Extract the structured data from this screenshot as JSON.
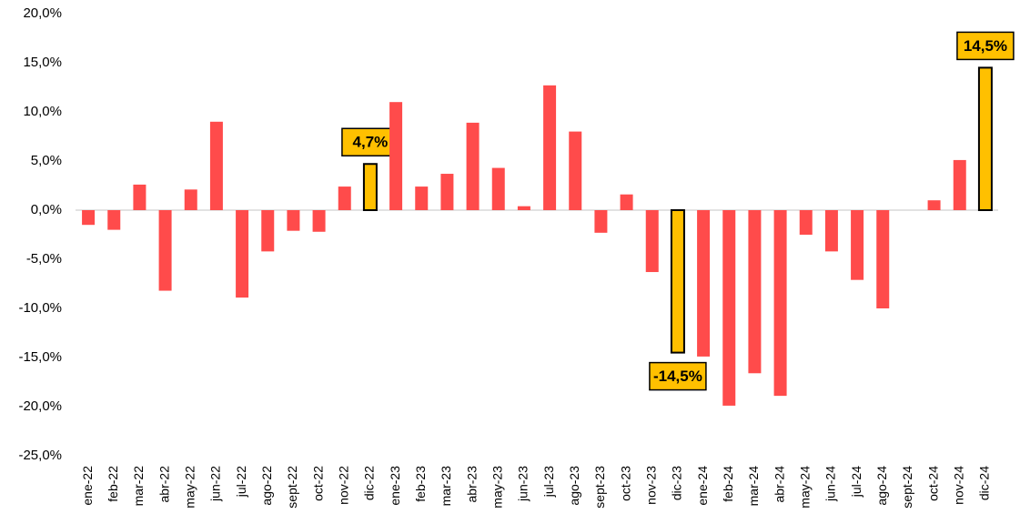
{
  "chart_data": {
    "type": "bar",
    "categories": [
      "ene-22",
      "feb-22",
      "mar-22",
      "abr-22",
      "may-22",
      "jun-22",
      "jul-22",
      "ago-22",
      "sept-22",
      "oct-22",
      "nov-22",
      "dic-22",
      "ene-23",
      "feb-23",
      "mar-23",
      "abr-23",
      "may-23",
      "jun-23",
      "jul-23",
      "ago-23",
      "sept-23",
      "oct-23",
      "nov-23",
      "dic-23",
      "ene-24",
      "feb-24",
      "mar-24",
      "abr-24",
      "may-24",
      "jun-24",
      "jul-24",
      "ago-24",
      "sept-24",
      "oct-24",
      "nov-24",
      "dic-24"
    ],
    "values": [
      -1.5,
      -2.0,
      2.6,
      -8.2,
      2.1,
      9.0,
      -8.9,
      -4.2,
      -2.1,
      -2.2,
      2.4,
      4.7,
      11.0,
      2.4,
      3.7,
      8.9,
      4.3,
      0.4,
      12.7,
      8.0,
      -2.3,
      1.6,
      -6.3,
      -14.5,
      -14.9,
      -19.9,
      -16.6,
      -18.9,
      -2.5,
      -4.2,
      -7.1,
      -10.0,
      0,
      1.0,
      5.1,
      14.5
    ],
    "value_labels": [
      null,
      null,
      null,
      null,
      null,
      null,
      null,
      null,
      null,
      null,
      null,
      "4,7%",
      null,
      null,
      null,
      null,
      null,
      null,
      null,
      null,
      null,
      null,
      null,
      "-14,5%",
      null,
      null,
      null,
      null,
      null,
      null,
      null,
      null,
      null,
      null,
      null,
      "14,5%"
    ],
    "color": "#ff4b4b",
    "highlight_color": "#ffc000",
    "ylim": [
      -25,
      20
    ],
    "yticks": [
      {
        "value": -25,
        "label": "-25,0%"
      },
      {
        "value": -20,
        "label": "-20,0%"
      },
      {
        "value": -15,
        "label": "-15,0%"
      },
      {
        "value": -10,
        "label": "-10,0%"
      },
      {
        "value": -5,
        "label": "-5,0%"
      },
      {
        "value": 0,
        "label": "0,0%"
      },
      {
        "value": 5,
        "label": "5,0%"
      },
      {
        "value": 10,
        "label": "10,0%"
      },
      {
        "value": 15,
        "label": "15,0%"
      },
      {
        "value": 20,
        "label": "20,0%"
      }
    ],
    "grid": false
  }
}
